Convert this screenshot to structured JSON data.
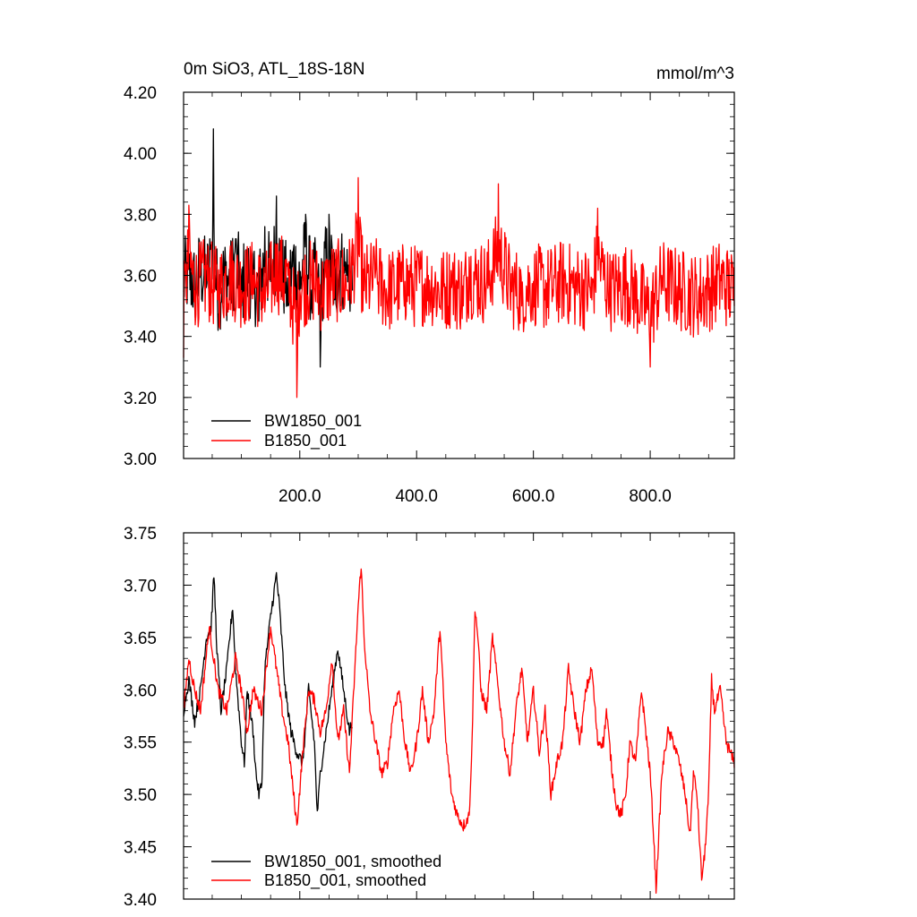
{
  "chart_data": [
    {
      "type": "line",
      "title": "0m SiO3, ATL_18S-18N",
      "units": "mmol/m^3",
      "xlim": [
        1,
        944
      ],
      "ylim": [
        3.0,
        4.2
      ],
      "x_ticks": [
        200,
        400,
        600,
        800
      ],
      "x_tick_labels": [
        "200.0",
        "400.0",
        "600.0",
        "800.0"
      ],
      "y_ticks": [
        3.0,
        3.2,
        3.4,
        3.6,
        3.8,
        4.0,
        4.2
      ],
      "y_tick_labels": [
        "3.00",
        "3.20",
        "3.40",
        "3.60",
        "3.80",
        "4.00",
        "4.20"
      ],
      "grid": false,
      "legend_position": "bottom-left",
      "series": [
        {
          "name": "BW1850_001",
          "color": "#000000",
          "x_range": [
            1,
            290
          ],
          "approx_mean": 3.6,
          "approx_max": 4.08,
          "approx_min": 3.3,
          "points": [
            [
              1,
              3.55
            ],
            [
              10,
              3.62
            ],
            [
              20,
              3.5
            ],
            [
              30,
              3.66
            ],
            [
              40,
              3.56
            ],
            [
              48,
              3.7
            ],
            [
              52,
              4.08
            ],
            [
              55,
              3.6
            ],
            [
              60,
              3.42
            ],
            [
              70,
              3.6
            ],
            [
              80,
              3.52
            ],
            [
              90,
              3.72
            ],
            [
              100,
              3.5
            ],
            [
              110,
              3.62
            ],
            [
              120,
              3.56
            ],
            [
              130,
              3.45
            ],
            [
              140,
              3.76
            ],
            [
              150,
              3.58
            ],
            [
              160,
              3.86
            ],
            [
              170,
              3.6
            ],
            [
              180,
              3.5
            ],
            [
              190,
              3.7
            ],
            [
              200,
              3.55
            ],
            [
              210,
              3.8
            ],
            [
              220,
              3.5
            ],
            [
              230,
              3.6
            ],
            [
              235,
              3.3
            ],
            [
              240,
              3.62
            ],
            [
              250,
              3.8
            ],
            [
              260,
              3.52
            ],
            [
              270,
              3.68
            ],
            [
              280,
              3.6
            ],
            [
              290,
              3.55
            ]
          ]
        },
        {
          "name": "B1850_001",
          "color": "#ff0000",
          "x_range": [
            1,
            944
          ],
          "approx_mean": 3.57,
          "approx_max": 3.92,
          "approx_min": 3.2,
          "points": [
            [
              1,
              3.33
            ],
            [
              5,
              3.6
            ],
            [
              10,
              3.83
            ],
            [
              20,
              3.55
            ],
            [
              40,
              3.62
            ],
            [
              60,
              3.52
            ],
            [
              80,
              3.66
            ],
            [
              100,
              3.55
            ],
            [
              120,
              3.6
            ],
            [
              140,
              3.48
            ],
            [
              160,
              3.7
            ],
            [
              180,
              3.6
            ],
            [
              195,
              3.2
            ],
            [
              200,
              3.55
            ],
            [
              220,
              3.6
            ],
            [
              240,
              3.5
            ],
            [
              260,
              3.62
            ],
            [
              280,
              3.55
            ],
            [
              300,
              3.92
            ],
            [
              310,
              3.55
            ],
            [
              330,
              3.62
            ],
            [
              350,
              3.5
            ],
            [
              380,
              3.58
            ],
            [
              400,
              3.55
            ],
            [
              420,
              3.6
            ],
            [
              440,
              3.5
            ],
            [
              460,
              3.56
            ],
            [
              480,
              3.5
            ],
            [
              490,
              3.66
            ],
            [
              500,
              3.62
            ],
            [
              520,
              3.58
            ],
            [
              540,
              3.9
            ],
            [
              560,
              3.55
            ],
            [
              580,
              3.5
            ],
            [
              600,
              3.58
            ],
            [
              620,
              3.52
            ],
            [
              650,
              3.6
            ],
            [
              670,
              3.55
            ],
            [
              700,
              3.52
            ],
            [
              710,
              3.82
            ],
            [
              730,
              3.5
            ],
            [
              760,
              3.58
            ],
            [
              800,
              3.3
            ],
            [
              820,
              3.6
            ],
            [
              850,
              3.52
            ],
            [
              880,
              3.46
            ],
            [
              900,
              3.52
            ],
            [
              920,
              3.6
            ],
            [
              944,
              3.5
            ]
          ]
        }
      ]
    },
    {
      "type": "line",
      "xlim": [
        1,
        944
      ],
      "ylim": [
        3.4,
        3.75
      ],
      "x_ticks": [
        200,
        400,
        600,
        800
      ],
      "y_ticks": [
        3.4,
        3.45,
        3.5,
        3.55,
        3.6,
        3.65,
        3.7,
        3.75
      ],
      "y_tick_labels": [
        "3.40",
        "3.45",
        "3.50",
        "3.55",
        "3.60",
        "3.65",
        "3.70",
        "3.75"
      ],
      "grid": false,
      "legend_position": "bottom-left",
      "series": [
        {
          "name": "BW1850_001, smoothed",
          "color": "#000000",
          "x_range": [
            1,
            290
          ],
          "points": [
            [
              1,
              3.58
            ],
            [
              10,
              3.61
            ],
            [
              20,
              3.57
            ],
            [
              30,
              3.6
            ],
            [
              40,
              3.65
            ],
            [
              48,
              3.66
            ],
            [
              53,
              3.71
            ],
            [
              58,
              3.64
            ],
            [
              65,
              3.58
            ],
            [
              75,
              3.62
            ],
            [
              85,
              3.68
            ],
            [
              90,
              3.62
            ],
            [
              100,
              3.55
            ],
            [
              105,
              3.53
            ],
            [
              110,
              3.6
            ],
            [
              120,
              3.56
            ],
            [
              125,
              3.52
            ],
            [
              130,
              3.5
            ],
            [
              135,
              3.51
            ],
            [
              140,
              3.62
            ],
            [
              150,
              3.67
            ],
            [
              160,
              3.71
            ],
            [
              165,
              3.68
            ],
            [
              175,
              3.6
            ],
            [
              185,
              3.56
            ],
            [
              195,
              3.54
            ],
            [
              205,
              3.53
            ],
            [
              215,
              3.6
            ],
            [
              225,
              3.55
            ],
            [
              230,
              3.48
            ],
            [
              235,
              3.52
            ],
            [
              245,
              3.56
            ],
            [
              255,
              3.6
            ],
            [
              265,
              3.64
            ],
            [
              275,
              3.6
            ],
            [
              285,
              3.56
            ],
            [
              290,
              3.57
            ]
          ]
        },
        {
          "name": "B1850_001, smoothed",
          "color": "#ff0000",
          "x_range": [
            1,
            944
          ],
          "points": [
            [
              1,
              3.58
            ],
            [
              10,
              3.63
            ],
            [
              20,
              3.6
            ],
            [
              30,
              3.58
            ],
            [
              45,
              3.66
            ],
            [
              60,
              3.6
            ],
            [
              75,
              3.58
            ],
            [
              90,
              3.63
            ],
            [
              100,
              3.6
            ],
            [
              110,
              3.56
            ],
            [
              120,
              3.6
            ],
            [
              135,
              3.58
            ],
            [
              150,
              3.66
            ],
            [
              160,
              3.62
            ],
            [
              170,
              3.58
            ],
            [
              180,
              3.55
            ],
            [
              195,
              3.47
            ],
            [
              205,
              3.54
            ],
            [
              215,
              3.6
            ],
            [
              225,
              3.59
            ],
            [
              235,
              3.56
            ],
            [
              245,
              3.58
            ],
            [
              255,
              3.63
            ],
            [
              265,
              3.55
            ],
            [
              275,
              3.58
            ],
            [
              285,
              3.52
            ],
            [
              300,
              3.68
            ],
            [
              305,
              3.72
            ],
            [
              310,
              3.65
            ],
            [
              320,
              3.58
            ],
            [
              330,
              3.55
            ],
            [
              340,
              3.52
            ],
            [
              350,
              3.53
            ],
            [
              360,
              3.58
            ],
            [
              370,
              3.6
            ],
            [
              380,
              3.55
            ],
            [
              390,
              3.52
            ],
            [
              400,
              3.55
            ],
            [
              410,
              3.6
            ],
            [
              420,
              3.55
            ],
            [
              430,
              3.58
            ],
            [
              440,
              3.66
            ],
            [
              450,
              3.55
            ],
            [
              460,
              3.5
            ],
            [
              470,
              3.48
            ],
            [
              480,
              3.47
            ],
            [
              490,
              3.48
            ],
            [
              495,
              3.55
            ],
            [
              500,
              3.68
            ],
            [
              505,
              3.65
            ],
            [
              510,
              3.6
            ],
            [
              520,
              3.58
            ],
            [
              530,
              3.65
            ],
            [
              540,
              3.6
            ],
            [
              550,
              3.55
            ],
            [
              560,
              3.52
            ],
            [
              570,
              3.58
            ],
            [
              580,
              3.62
            ],
            [
              590,
              3.55
            ],
            [
              600,
              3.6
            ],
            [
              610,
              3.54
            ],
            [
              620,
              3.58
            ],
            [
              630,
              3.5
            ],
            [
              640,
              3.53
            ],
            [
              650,
              3.55
            ],
            [
              660,
              3.62
            ],
            [
              670,
              3.58
            ],
            [
              680,
              3.55
            ],
            [
              690,
              3.6
            ],
            [
              700,
              3.62
            ],
            [
              710,
              3.55
            ],
            [
              720,
              3.55
            ],
            [
              725,
              3.58
            ],
            [
              735,
              3.52
            ],
            [
              742,
              3.49
            ],
            [
              750,
              3.48
            ],
            [
              758,
              3.5
            ],
            [
              765,
              3.55
            ],
            [
              775,
              3.53
            ],
            [
              785,
              3.6
            ],
            [
              800,
              3.52
            ],
            [
              805,
              3.47
            ],
            [
              810,
              3.41
            ],
            [
              820,
              3.52
            ],
            [
              830,
              3.56
            ],
            [
              840,
              3.55
            ],
            [
              850,
              3.53
            ],
            [
              860,
              3.5
            ],
            [
              868,
              3.46
            ],
            [
              874,
              3.52
            ],
            [
              880,
              3.5
            ],
            [
              888,
              3.42
            ],
            [
              893,
              3.44
            ],
            [
              900,
              3.5
            ],
            [
              905,
              3.61
            ],
            [
              910,
              3.58
            ],
            [
              920,
              3.6
            ],
            [
              930,
              3.55
            ],
            [
              944,
              3.53
            ]
          ]
        }
      ]
    }
  ]
}
